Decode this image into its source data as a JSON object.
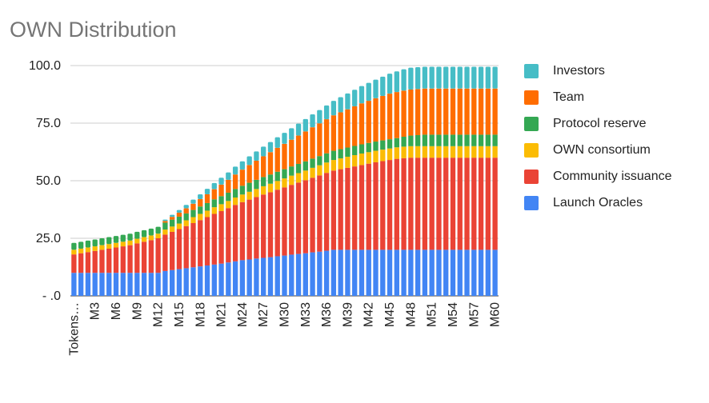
{
  "chart_data": {
    "type": "bar",
    "stacked": true,
    "title": "OWN Distribution",
    "xlabel": "",
    "ylabel": "",
    "ylim": [
      0,
      100
    ],
    "yticks": [
      0,
      25,
      50,
      75,
      100
    ],
    "ytick_labels": [
      "- .0",
      "25.0",
      "50.0",
      "75.0",
      "100.0"
    ],
    "grid": true,
    "legend_position": "right",
    "categories": [
      "Tokens…",
      "M1",
      "M2",
      "M3",
      "M4",
      "M5",
      "M6",
      "M7",
      "M8",
      "M9",
      "M10",
      "M11",
      "M12",
      "M13",
      "M14",
      "M15",
      "M16",
      "M17",
      "M18",
      "M19",
      "M20",
      "M21",
      "M22",
      "M23",
      "M24",
      "M25",
      "M26",
      "M27",
      "M28",
      "M29",
      "M30",
      "M31",
      "M32",
      "M33",
      "M34",
      "M35",
      "M36",
      "M37",
      "M38",
      "M39",
      "M40",
      "M41",
      "M42",
      "M43",
      "M44",
      "M45",
      "M46",
      "M47",
      "M48",
      "M49",
      "M50",
      "M51",
      "M52",
      "M53",
      "M54",
      "M55",
      "M56",
      "M57",
      "M58",
      "M59",
      "M60"
    ],
    "x_tick_labels": [
      "Tokens…",
      "M3",
      "M6",
      "M9",
      "M12",
      "M15",
      "M18",
      "M21",
      "M24",
      "M27",
      "M30",
      "M33",
      "M36",
      "M39",
      "M42",
      "M45",
      "M48",
      "M51",
      "M54",
      "M57",
      "M60"
    ],
    "series": [
      {
        "name": "Launch Oracles",
        "color": "#4285f4",
        "values": [
          10,
          10,
          10,
          10,
          10,
          10,
          10,
          10,
          10,
          10,
          10,
          10,
          10,
          10.8,
          11.2,
          11.6,
          12,
          12.4,
          12.8,
          13.2,
          13.6,
          14,
          14.5,
          15,
          15.5,
          15.8,
          16.2,
          16.5,
          16.8,
          17.2,
          17.5,
          17.9,
          18.2,
          18.5,
          18.9,
          19.2,
          19.6,
          20,
          20,
          20,
          20,
          20,
          20,
          20,
          20,
          20,
          20,
          20,
          20,
          20,
          20,
          20,
          20,
          20,
          20,
          20,
          20,
          20,
          20,
          20,
          20
        ]
      },
      {
        "name": "Community issuance",
        "color": "#ea4335",
        "values": [
          8,
          8.5,
          9,
          9.5,
          10,
          10.5,
          11,
          11.5,
          12,
          12.8,
          13.5,
          14.2,
          15,
          15.8,
          16.6,
          17.4,
          18.3,
          19.2,
          20.1,
          21,
          22,
          22.8,
          23.6,
          24.5,
          25.2,
          26,
          26.7,
          27.5,
          28.2,
          28.9,
          29.6,
          30.3,
          31,
          31.7,
          32.4,
          33.1,
          33.8,
          34.4,
          35,
          35.6,
          36.2,
          36.8,
          37.4,
          38,
          38.5,
          39,
          39.5,
          39.8,
          40,
          40,
          40,
          40,
          40,
          40,
          40,
          40,
          40,
          40,
          40,
          40,
          40
        ]
      },
      {
        "name": "OWN consortium",
        "color": "#fbbc04",
        "values": [
          2,
          2,
          2,
          2,
          2,
          2,
          2,
          2,
          2,
          2,
          2,
          2,
          2,
          2.2,
          2.3,
          2.4,
          2.5,
          2.6,
          2.7,
          2.8,
          2.9,
          3,
          3.1,
          3.2,
          3.3,
          3.4,
          3.5,
          3.6,
          3.7,
          3.8,
          3.9,
          4,
          4.1,
          4.2,
          4.3,
          4.4,
          4.5,
          4.6,
          4.7,
          4.8,
          4.9,
          5,
          5,
          5,
          5,
          5,
          5,
          5,
          5,
          5,
          5,
          5,
          5,
          5,
          5,
          5,
          5,
          5,
          5,
          5,
          5
        ]
      },
      {
        "name": "Protocol reserve",
        "color": "#34a853",
        "values": [
          3,
          3,
          3,
          3,
          3,
          3,
          3,
          3,
          3,
          3,
          3,
          3,
          3,
          3,
          3,
          3,
          3,
          3.1,
          3.2,
          3.3,
          3.4,
          3.5,
          3.6,
          3.7,
          3.8,
          3.9,
          4,
          4,
          4,
          4,
          4,
          4,
          4,
          4,
          4,
          4,
          4,
          4,
          4,
          4,
          4,
          4,
          4,
          4,
          4,
          4,
          4,
          4.3,
          4.6,
          4.8,
          5,
          5,
          5,
          5,
          5,
          5,
          5,
          5,
          5,
          5,
          5
        ]
      },
      {
        "name": "Team",
        "color": "#ff6d01",
        "values": [
          0,
          0,
          0,
          0,
          0,
          0,
          0,
          0,
          0,
          0,
          0,
          0,
          0,
          0.7,
          1.2,
          1.7,
          2.2,
          2.7,
          3.2,
          3.8,
          4.4,
          5,
          5.6,
          6.3,
          7,
          7.7,
          8.3,
          9,
          9.7,
          10.4,
          11,
          11.6,
          12.3,
          13,
          13.6,
          14.2,
          14.8,
          15.4,
          16,
          16.6,
          17.2,
          17.8,
          18.3,
          18.8,
          19.3,
          19.8,
          20,
          20,
          20,
          20,
          20,
          20,
          20,
          20,
          20,
          20,
          20,
          20,
          20,
          20,
          20
        ]
      },
      {
        "name": "Investors",
        "color": "#46bdc6",
        "values": [
          0,
          0,
          0,
          0,
          0,
          0,
          0,
          0,
          0,
          0,
          0,
          0,
          0,
          0.6,
          0.9,
          1.2,
          1.5,
          1.8,
          2.1,
          2.4,
          2.7,
          3,
          3.2,
          3.4,
          3.6,
          3.8,
          4,
          4.2,
          4.4,
          4.6,
          4.8,
          5,
          5.2,
          5.4,
          5.6,
          5.8,
          6,
          6.3,
          6.6,
          6.9,
          7.2,
          7.5,
          7.8,
          8.1,
          8.4,
          8.7,
          9,
          9.3,
          9.5,
          9.5,
          9.5,
          9.5,
          9.5,
          9.5,
          9.5,
          9.5,
          9.5,
          9.5,
          9.5,
          9.5,
          9.5
        ]
      }
    ]
  },
  "legend": {
    "items": [
      {
        "label": "Investors",
        "color": "#46bdc6"
      },
      {
        "label": "Team",
        "color": "#ff6d01"
      },
      {
        "label": "Protocol reserve",
        "color": "#34a853"
      },
      {
        "label": "OWN consortium",
        "color": "#fbbc04"
      },
      {
        "label": "Community issuance",
        "color": "#ea4335"
      },
      {
        "label": "Launch Oracles",
        "color": "#4285f4"
      }
    ]
  }
}
